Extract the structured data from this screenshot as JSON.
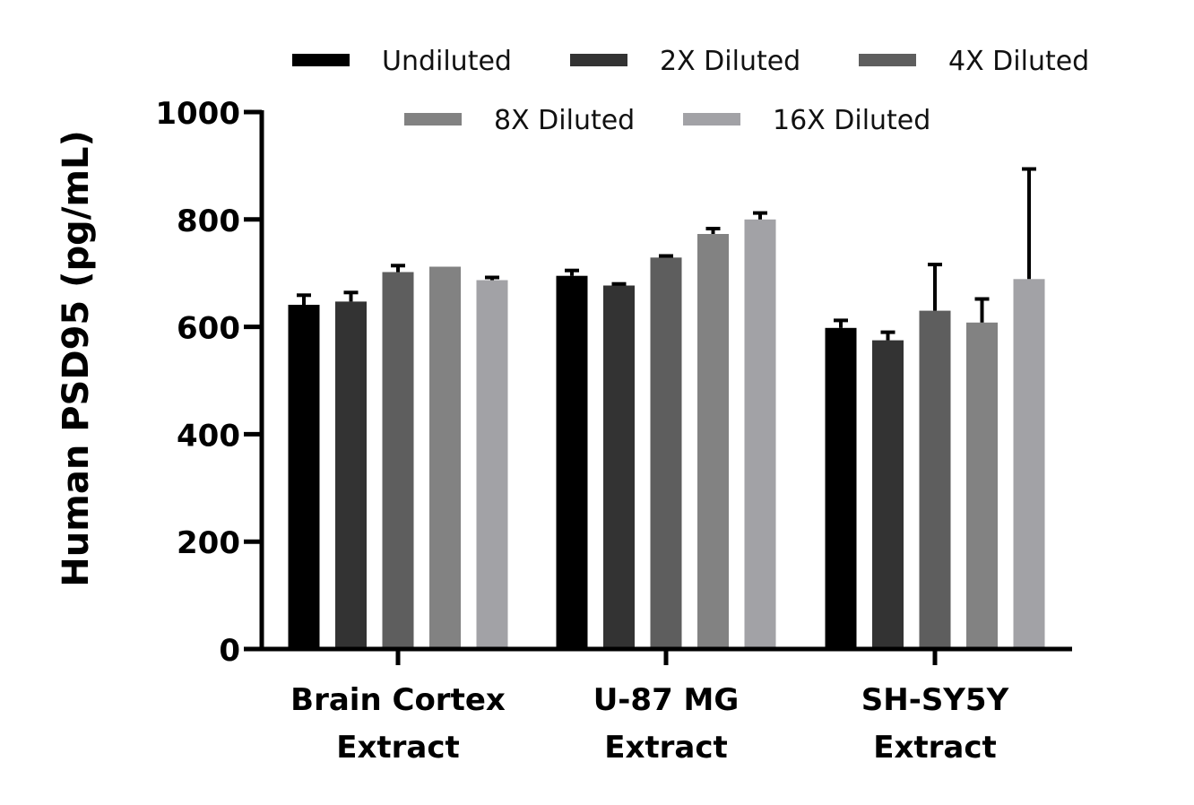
{
  "chart_data": {
    "type": "bar",
    "title": "",
    "xlabel": "",
    "ylabel": "Human PSD95 (pg/mL)",
    "ylim": [
      0,
      1000
    ],
    "yticks": [
      "0",
      "200",
      "400",
      "600",
      "800",
      "1000"
    ],
    "categories": [
      [
        "Brain Cortex",
        "Extract"
      ],
      [
        "U-87 MG",
        "Extract"
      ],
      [
        "SH-SY5Y",
        "Extract"
      ]
    ],
    "legend_position": "top",
    "grid": false,
    "series": [
      {
        "name": "Undiluted",
        "color": "#000000",
        "values": [
          641,
          695,
          598
        ],
        "errors": [
          18,
          10,
          14
        ]
      },
      {
        "name": "2X Diluted",
        "color": "#333333",
        "values": [
          647,
          677,
          575
        ],
        "errors": [
          17,
          3,
          15
        ]
      },
      {
        "name": "4X Diluted",
        "color": "#5e5e5e",
        "values": [
          702,
          729,
          630
        ],
        "errors": [
          12,
          3,
          86
        ]
      },
      {
        "name": "8X Diluted",
        "color": "#828282",
        "values": [
          712,
          773,
          608
        ],
        "errors": [
          0,
          10,
          44
        ]
      },
      {
        "name": "16X Diluted",
        "color": "#a2a2a6",
        "values": [
          687,
          800,
          689
        ],
        "errors": [
          5,
          12,
          205
        ]
      }
    ]
  }
}
